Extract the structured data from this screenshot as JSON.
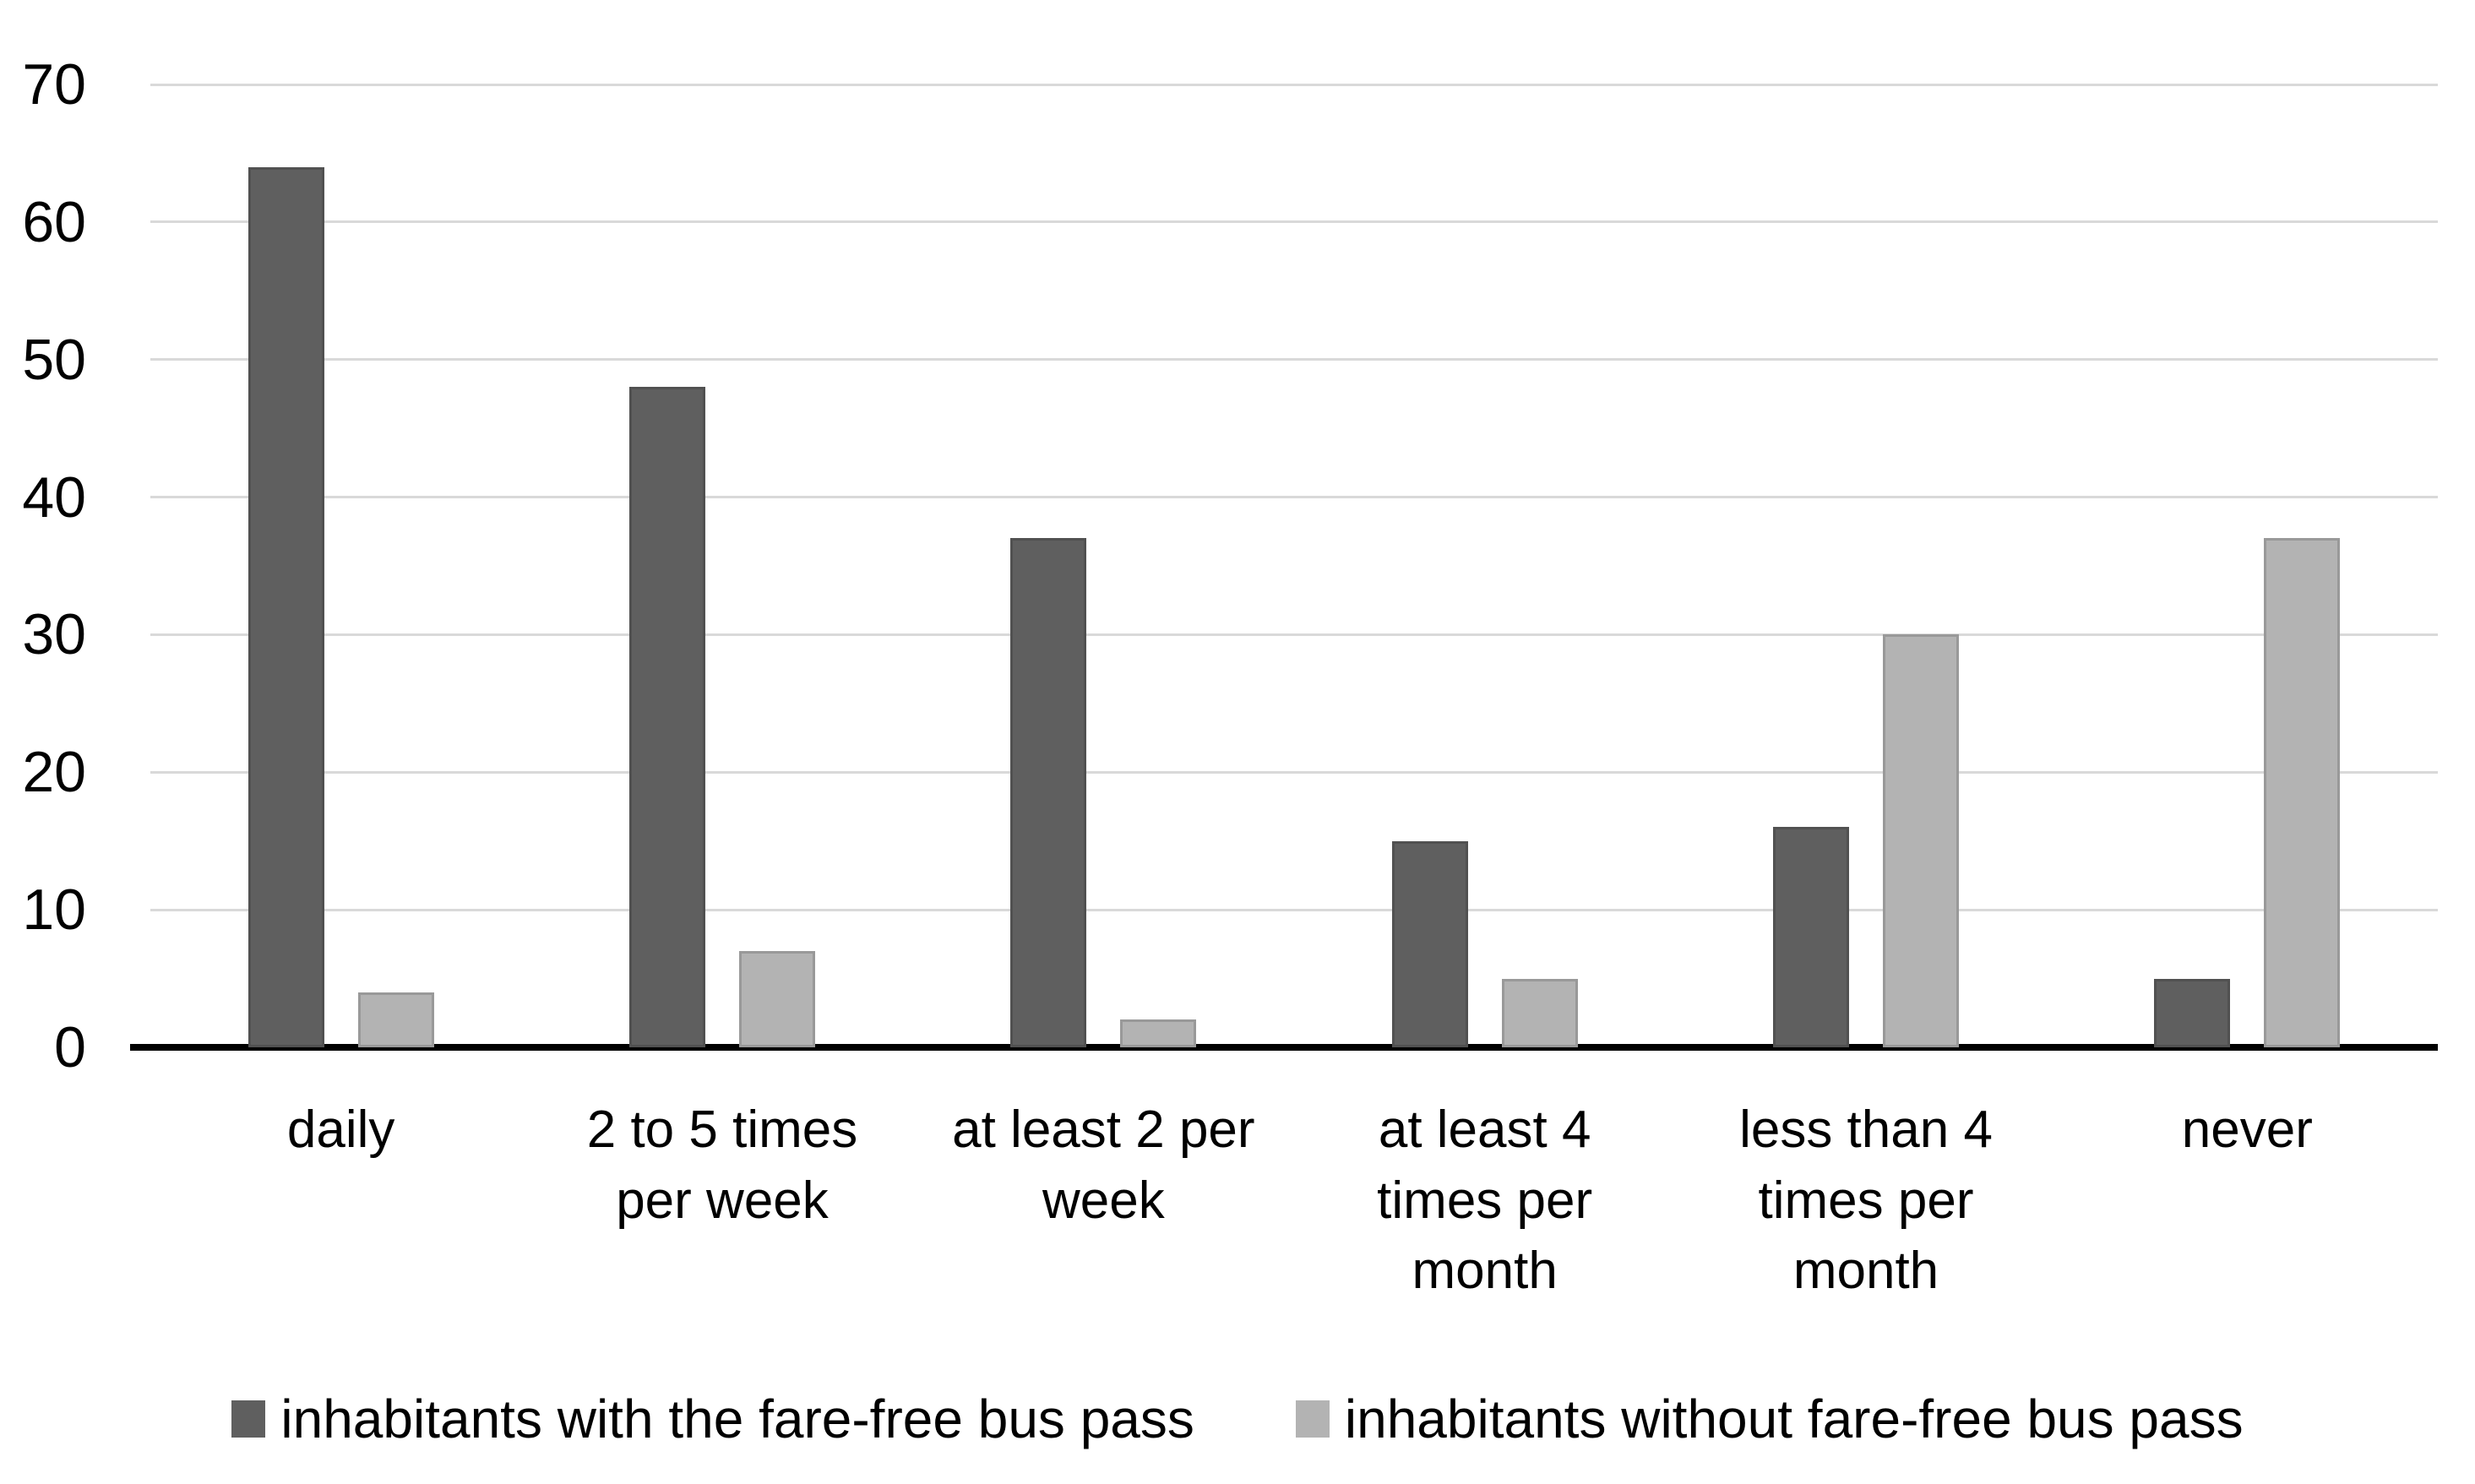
{
  "chart_data": {
    "type": "bar",
    "categories": [
      "daily",
      "2 to 5 times\nper week",
      "at least 2 per\nweek",
      "at least 4\ntimes per\nmonth",
      "less than 4\ntimes per\nmonth",
      "never"
    ],
    "series": [
      {
        "name": "inhabitants with the fare-free bus pass",
        "color": "#5f5f5f",
        "values": [
          64,
          48,
          37,
          15,
          16,
          5
        ]
      },
      {
        "name": "inhabitants without fare-free bus pass",
        "color": "#b3b3b3",
        "values": [
          4,
          7,
          2,
          5,
          30,
          37
        ]
      }
    ],
    "title": "",
    "xlabel": "",
    "ylabel": "",
    "ylim": [
      0,
      70
    ],
    "yticks": [
      0,
      10,
      20,
      30,
      40,
      50,
      60,
      70
    ],
    "grid": "horizontal-only",
    "legend_position": "bottom"
  },
  "colors": {
    "background": "#ffffff",
    "gridline": "#d9d9d9",
    "axis_line": "#000000",
    "text": "#000000"
  }
}
